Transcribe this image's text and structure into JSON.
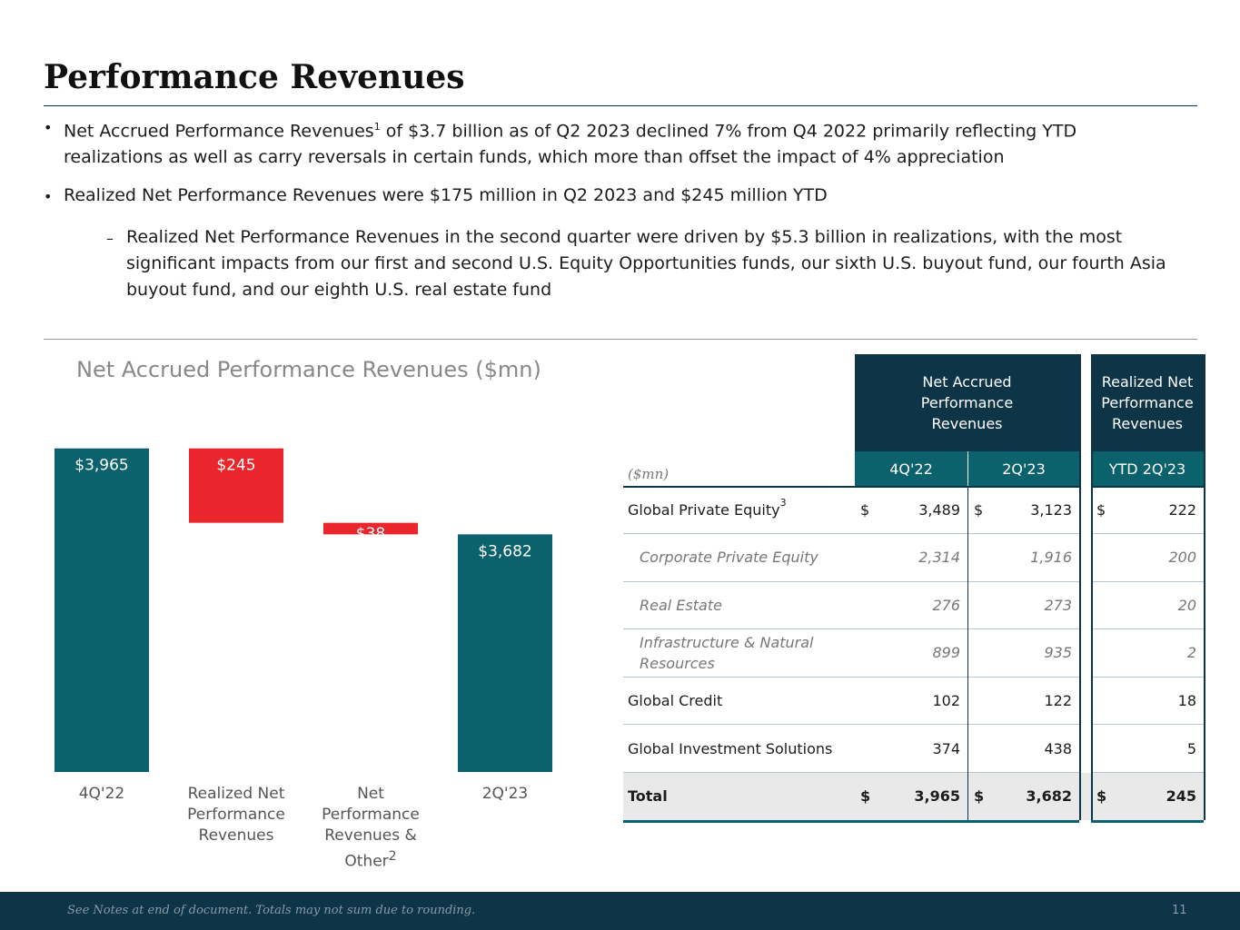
{
  "header": {
    "title": "Performance Revenues"
  },
  "bullets": [
    {
      "text": "Net Accrued Performance Revenues",
      "sup": "1",
      "rest": " of $3.7 billion as of Q2 2023 declined 7% from Q4 2022 primarily reflecting YTD realizations as well as carry reversals in certain funds, which more than offset the impact of 4% appreciation"
    },
    {
      "text": "Realized Net Performance Revenues were $175 million in Q2 2023 and $245 million YTD"
    },
    {
      "text": "Realized Net Performance Revenues in the second quarter were driven by $5.3 billion in realizations, with the most significant impacts from our first and second U.S. Equity Opportunities funds, our sixth U.S. buyout fund, our fourth Asia buyout fund, and our eighth U.S. real estate fund"
    }
  ],
  "chart_data": {
    "type": "waterfall",
    "title": "Net Accrued Performance Revenues ($mn)",
    "categories": [
      "4Q'22",
      "Realized Net Performance Revenues",
      "Net Performance Revenues & Other",
      "2Q'23"
    ],
    "category_note": {
      "index": 2,
      "text": "2"
    },
    "measures": [
      "total",
      "relative",
      "relative",
      "total"
    ],
    "values": [
      3965,
      -245,
      -38,
      3682
    ],
    "value_labels": [
      "$3,965",
      "$245",
      "$38",
      "$3,682"
    ],
    "colors": {
      "total": "#0b626c",
      "relative": "#e8262b"
    },
    "ylim": [
      2900,
      4000
    ]
  },
  "table": {
    "groups": [
      "Net Accrued Performance Revenues",
      "Realized Net Performance Revenues"
    ],
    "unit": "($mn)",
    "columns": [
      "4Q'22",
      "2Q'23",
      "YTD 2Q'23"
    ],
    "rows": [
      {
        "label": "Global Private Equity",
        "sup": "3",
        "cells": [
          {
            "sym": "$",
            "value": "3,489"
          },
          {
            "sym": "$",
            "value": "3,123"
          },
          {
            "sym": "$",
            "value": "222"
          }
        ]
      },
      {
        "label": "Corporate Private Equity",
        "sub": true,
        "cells": [
          {
            "value": "2,314"
          },
          {
            "value": "1,916"
          },
          {
            "value": "200"
          }
        ]
      },
      {
        "label": "Real Estate",
        "sub": true,
        "cells": [
          {
            "value": "276"
          },
          {
            "value": "273"
          },
          {
            "value": "20"
          }
        ]
      },
      {
        "label": "Infrastructure & Natural Resources",
        "sub": true,
        "cells": [
          {
            "value": "899"
          },
          {
            "value": "935"
          },
          {
            "value": "2"
          }
        ]
      },
      {
        "label": "Global Credit",
        "cells": [
          {
            "value": "102"
          },
          {
            "value": "122"
          },
          {
            "value": "18"
          }
        ]
      },
      {
        "label": "Global Investment Solutions",
        "cells": [
          {
            "value": "374"
          },
          {
            "value": "438"
          },
          {
            "value": "5"
          }
        ]
      },
      {
        "label": "Total",
        "total": true,
        "cells": [
          {
            "sym": "$",
            "value": "3,965"
          },
          {
            "sym": "$",
            "value": "3,682"
          },
          {
            "sym": "$",
            "value": "245"
          }
        ]
      }
    ]
  },
  "footer": {
    "note": "See Notes at end of document. Totals may not sum due to rounding.",
    "page": "11"
  }
}
